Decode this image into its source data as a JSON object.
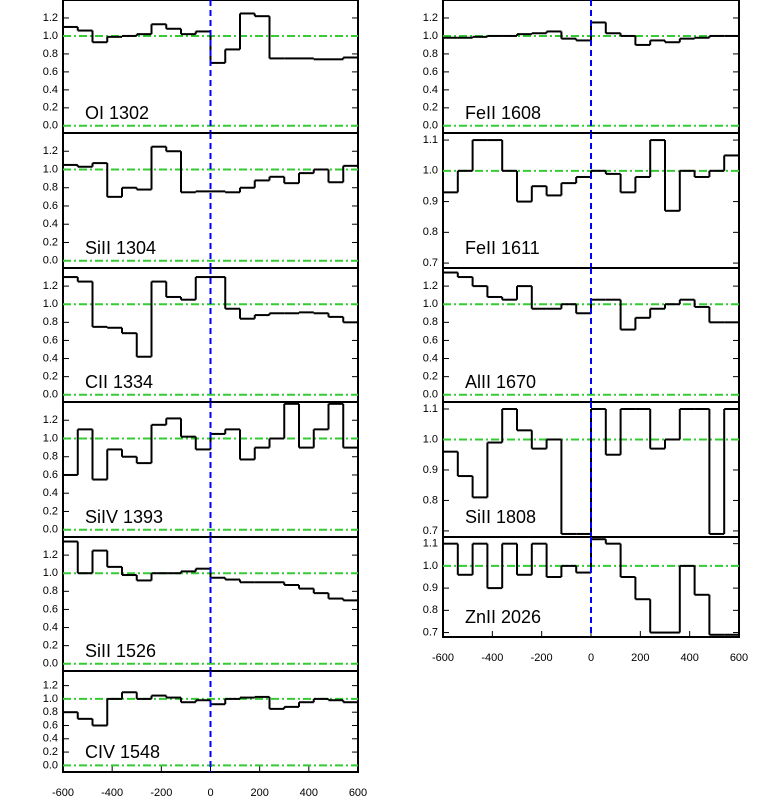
{
  "chart_data": [
    {
      "type": "step",
      "label": "OI 1302",
      "color": "#000000",
      "vline": 0,
      "vline_color": "#0000ff",
      "hlines": [
        0,
        1
      ],
      "hline_color": "#33cc33",
      "xlim": [
        -600,
        600
      ],
      "ylim": [
        -0.08,
        1.4
      ],
      "yticks": [
        {
          "value": 0,
          "label": "0.0"
        },
        0.2,
        0.4,
        0.6,
        0.8,
        {
          "value": 1,
          "label": "1.0"
        },
        1.2
      ],
      "x": [
        -570,
        -510,
        -450,
        -390,
        -330,
        -270,
        -210,
        -150,
        -90,
        -30,
        30,
        90,
        150,
        210,
        270,
        330,
        390,
        450,
        510,
        570
      ],
      "values": [
        1.1,
        1.06,
        0.93,
        0.99,
        1.0,
        1.02,
        1.13,
        1.08,
        1.02,
        1.05,
        0.7,
        0.85,
        1.25,
        1.22,
        0.75,
        0.75,
        0.75,
        0.74,
        0.74,
        0.76
      ]
    },
    {
      "type": "step",
      "label": "SiII 1304",
      "color": "#000000",
      "vline": 0,
      "vline_color": "#0000ff",
      "hlines": [
        0,
        1
      ],
      "hline_color": "#33cc33",
      "xlim": [
        -600,
        600
      ],
      "ylim": [
        -0.08,
        1.4
      ],
      "yticks": [
        {
          "value": 0,
          "label": "0.0"
        },
        0.2,
        0.4,
        0.6,
        0.8,
        {
          "value": 1,
          "label": "1.0"
        },
        1.2
      ],
      "x": [
        -570,
        -510,
        -450,
        -390,
        -330,
        -270,
        -210,
        -150,
        -90,
        -30,
        30,
        90,
        150,
        210,
        270,
        330,
        390,
        450,
        510,
        570
      ],
      "values": [
        1.05,
        1.03,
        1.07,
        0.7,
        0.8,
        0.78,
        1.25,
        1.2,
        0.75,
        0.76,
        0.76,
        0.75,
        0.8,
        0.88,
        0.92,
        0.85,
        0.96,
        1.0,
        0.86,
        1.04
      ]
    },
    {
      "type": "step",
      "label": "CII 1334",
      "color": "#000000",
      "vline": 0,
      "vline_color": "#0000ff",
      "hlines": [
        0,
        1
      ],
      "hline_color": "#33cc33",
      "xlim": [
        -600,
        600
      ],
      "ylim": [
        -0.08,
        1.4
      ],
      "yticks": [
        {
          "value": 0,
          "label": "0.0"
        },
        0.2,
        0.4,
        0.6,
        0.8,
        {
          "value": 1,
          "label": "1.0"
        },
        1.2
      ],
      "x": [
        -570,
        -510,
        -450,
        -390,
        -330,
        -270,
        -210,
        -150,
        -90,
        -30,
        30,
        90,
        150,
        210,
        270,
        330,
        390,
        450,
        510,
        570
      ],
      "values": [
        1.3,
        1.25,
        0.75,
        0.74,
        0.68,
        0.42,
        1.25,
        1.08,
        1.05,
        1.3,
        1.3,
        0.95,
        0.84,
        0.88,
        0.9,
        0.9,
        0.91,
        0.9,
        0.86,
        0.8
      ]
    },
    {
      "type": "step",
      "label": "SiIV 1393",
      "color": "#000000",
      "vline": 0,
      "vline_color": "#0000ff",
      "hlines": [
        0,
        1
      ],
      "hline_color": "#33cc33",
      "xlim": [
        -600,
        600
      ],
      "ylim": [
        -0.08,
        1.4
      ],
      "yticks": [
        {
          "value": 0,
          "label": "0.0"
        },
        0.2,
        0.4,
        0.6,
        0.8,
        {
          "value": 1,
          "label": "1.0"
        },
        1.2
      ],
      "x": [
        -570,
        -510,
        -450,
        -390,
        -330,
        -270,
        -210,
        -150,
        -90,
        -30,
        30,
        90,
        150,
        210,
        270,
        330,
        390,
        450,
        510,
        570
      ],
      "values": [
        0.6,
        1.1,
        0.55,
        0.88,
        0.8,
        0.73,
        1.15,
        1.22,
        1.02,
        0.88,
        1.05,
        1.1,
        0.77,
        0.9,
        1.0,
        1.38,
        0.9,
        1.1,
        1.38,
        0.9
      ]
    },
    {
      "type": "step",
      "label": "SiII 1526",
      "color": "#000000",
      "vline": 0,
      "vline_color": "#0000ff",
      "hlines": [
        0,
        1
      ],
      "hline_color": "#33cc33",
      "xlim": [
        -600,
        600
      ],
      "ylim": [
        -0.08,
        1.4
      ],
      "yticks": [
        {
          "value": 0,
          "label": "0.0"
        },
        0.2,
        0.4,
        0.6,
        0.8,
        {
          "value": 1,
          "label": "1.0"
        },
        1.2
      ],
      "x": [
        -570,
        -510,
        -450,
        -390,
        -330,
        -270,
        -210,
        -150,
        -90,
        -30,
        30,
        90,
        150,
        210,
        270,
        330,
        390,
        450,
        510,
        570
      ],
      "values": [
        1.35,
        1.0,
        1.25,
        1.07,
        0.98,
        0.92,
        1.0,
        1.0,
        1.02,
        1.05,
        0.95,
        0.93,
        0.9,
        0.9,
        0.9,
        0.87,
        0.83,
        0.78,
        0.72,
        0.7
      ]
    },
    {
      "type": "step",
      "label": "CIV 1548",
      "color": "#000000",
      "vline": 0,
      "vline_color": "#0000ff",
      "hlines": [
        0,
        1
      ],
      "hline_color": "#33cc33",
      "xlim": [
        -600,
        600
      ],
      "ylim": [
        -0.1,
        1.42
      ],
      "yticks": [
        {
          "value": 0,
          "label": "0.0"
        },
        0.2,
        0.4,
        0.6,
        0.8,
        {
          "value": 1,
          "label": "1.0"
        },
        1.2
      ],
      "xticks": [
        -600,
        -400,
        -200,
        0,
        200,
        400,
        600
      ],
      "x": [
        -570,
        -510,
        -450,
        -390,
        -330,
        -270,
        -210,
        -150,
        -90,
        -30,
        30,
        90,
        150,
        210,
        270,
        330,
        390,
        450,
        510,
        570
      ],
      "values": [
        0.8,
        0.7,
        0.6,
        1.0,
        1.1,
        1.0,
        1.05,
        1.02,
        0.95,
        0.98,
        0.92,
        1.0,
        1.02,
        1.03,
        0.85,
        0.88,
        0.95,
        1.0,
        0.98,
        0.95
      ]
    },
    {
      "type": "step",
      "label": "FeII 1608",
      "color": "#000000",
      "vline": 0,
      "vline_color": "#0000ff",
      "hlines": [
        0,
        1
      ],
      "hline_color": "#33cc33",
      "xlim": [
        -600,
        600
      ],
      "ylim": [
        -0.08,
        1.4
      ],
      "yticks": [
        {
          "value": 0,
          "label": "0.0"
        },
        0.2,
        0.4,
        0.6,
        0.8,
        {
          "value": 1,
          "label": "1.0"
        },
        1.2
      ],
      "x": [
        -570,
        -510,
        -450,
        -390,
        -330,
        -270,
        -210,
        -150,
        -90,
        -30,
        30,
        90,
        150,
        210,
        270,
        330,
        390,
        450,
        510,
        570
      ],
      "values": [
        0.98,
        0.98,
        0.99,
        1.0,
        1.0,
        1.02,
        1.03,
        1.05,
        0.97,
        0.95,
        1.15,
        1.03,
        1.0,
        0.9,
        0.95,
        0.93,
        0.97,
        0.98,
        1.0,
        1.0
      ]
    },
    {
      "type": "step",
      "label": "FeII 1611",
      "color": "#000000",
      "vline": 0,
      "vline_color": "#0000ff",
      "hlines": [
        1
      ],
      "hline_color": "#33cc33",
      "xlim": [
        -600,
        600
      ],
      "ylim": [
        0.684,
        1.123
      ],
      "yticks": [
        0.7,
        0.8,
        0.9,
        {
          "value": 1,
          "label": "1.0"
        },
        1.1
      ],
      "x": [
        -570,
        -510,
        -450,
        -390,
        -330,
        -270,
        -210,
        -150,
        -90,
        -30,
        30,
        90,
        150,
        210,
        270,
        330,
        390,
        450,
        510,
        570
      ],
      "values": [
        0.93,
        1.0,
        1.1,
        1.1,
        1.0,
        0.9,
        0.95,
        0.92,
        0.96,
        0.98,
        1.0,
        0.99,
        0.93,
        0.98,
        1.1,
        0.87,
        1.0,
        0.98,
        1.0,
        1.05
      ]
    },
    {
      "type": "step",
      "label": "AlII 1670",
      "color": "#000000",
      "vline": 0,
      "vline_color": "#0000ff",
      "hlines": [
        0,
        1
      ],
      "hline_color": "#33cc33",
      "xlim": [
        -600,
        600
      ],
      "ylim": [
        -0.08,
        1.4
      ],
      "yticks": [
        {
          "value": 0,
          "label": "0.0"
        },
        0.2,
        0.4,
        0.6,
        0.8,
        {
          "value": 1,
          "label": "1.0"
        },
        1.2
      ],
      "x": [
        -570,
        -510,
        -450,
        -390,
        -330,
        -270,
        -210,
        -150,
        -90,
        -30,
        30,
        90,
        150,
        210,
        270,
        330,
        390,
        450,
        510,
        570
      ],
      "values": [
        1.35,
        1.3,
        1.2,
        1.08,
        1.05,
        1.2,
        0.95,
        0.95,
        1.0,
        0.9,
        1.05,
        1.05,
        0.72,
        0.85,
        0.95,
        1.0,
        1.05,
        0.97,
        0.8,
        0.8
      ]
    },
    {
      "type": "step",
      "label": "SiII 1808",
      "color": "#000000",
      "vline": 0,
      "vline_color": "#0000ff",
      "hlines": [
        1
      ],
      "hline_color": "#33cc33",
      "xlim": [
        -600,
        600
      ],
      "ylim": [
        0.68,
        1.123
      ],
      "yticks": [
        0.7,
        0.8,
        0.9,
        {
          "value": 1,
          "label": "1.0"
        },
        1.1
      ],
      "x": [
        -570,
        -510,
        -450,
        -390,
        -330,
        -270,
        -210,
        -150,
        -90,
        -30,
        30,
        90,
        150,
        210,
        270,
        330,
        390,
        450,
        510,
        570
      ],
      "values": [
        0.96,
        0.88,
        0.81,
        0.99,
        1.1,
        1.03,
        0.97,
        1.0,
        0.69,
        0.69,
        1.1,
        0.95,
        1.1,
        1.1,
        0.97,
        1.0,
        1.1,
        1.1,
        0.69,
        1.1
      ]
    },
    {
      "type": "step",
      "label": "ZnII 2026",
      "color": "#000000",
      "vline": 0,
      "vline_color": "#0000ff",
      "hlines": [
        1
      ],
      "hline_color": "#33cc33",
      "xlim": [
        -600,
        600
      ],
      "ylim": [
        0.68,
        1.13
      ],
      "yticks": [
        0.7,
        0.8,
        0.9,
        {
          "value": 1,
          "label": "1.0"
        },
        1.1
      ],
      "xticks": [
        -600,
        -400,
        -200,
        0,
        200,
        400,
        600
      ],
      "x": [
        -570,
        -510,
        -450,
        -390,
        -330,
        -270,
        -210,
        -150,
        -90,
        -30,
        30,
        90,
        150,
        210,
        270,
        330,
        390,
        450,
        510,
        570
      ],
      "values": [
        1.1,
        0.96,
        1.1,
        0.9,
        1.1,
        0.96,
        1.1,
        0.95,
        1.0,
        0.97,
        1.12,
        1.1,
        0.95,
        0.85,
        0.7,
        0.7,
        1.0,
        0.87,
        0.69,
        0.69
      ]
    }
  ]
}
